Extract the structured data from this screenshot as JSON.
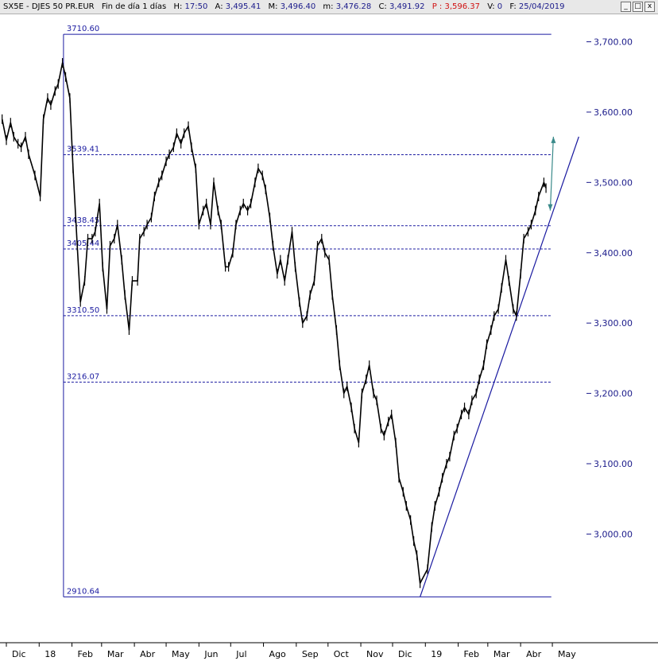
{
  "titlebar": {
    "symbol": "SX5E - DJES 50 PR.EUR",
    "period": "Fin de día 1 días",
    "h_label": "H:",
    "h_value": "17:50",
    "a_label": "A:",
    "a_value": "3,495.41",
    "m_label": "M:",
    "m_value": "3,496.40",
    "mi_label": "m:",
    "mi_value": "3,476.28",
    "c_label": "C:",
    "c_value": "3,491.92",
    "p_label": "P :",
    "p_value": "3,596.37",
    "v_label": "V:",
    "v_value": "0",
    "f_label": "F:",
    "f_value": "25/04/2019",
    "btn_min": "_",
    "btn_max": "□",
    "btn_close": "x"
  },
  "colors": {
    "price": "#000000",
    "lines": "#1a1aa0",
    "axis_text": "#1a1a8a",
    "arrow": "#3a8a8a"
  },
  "chart_data": {
    "type": "line",
    "ylim": [
      2850,
      3730
    ],
    "y_ticks": [
      3000,
      3100,
      3200,
      3300,
      3400,
      3500,
      3600,
      3700
    ],
    "y_tick_labels": [
      "3,000.00",
      "3,100.00",
      "3,200.00",
      "3,300.00",
      "3,400.00",
      "3,500.00",
      "3,600.00",
      "3,700.00"
    ],
    "x_tick_labels": [
      "Dic",
      "18",
      "Feb",
      "Mar",
      "Abr",
      "May",
      "Jun",
      "Jul",
      "Ago",
      "Sep",
      "Oct",
      "Nov",
      "Dic",
      "19",
      "Feb",
      "Mar",
      "Abr",
      "May"
    ],
    "x_ticks": [
      "2017-12-01",
      "2018-01-01",
      "2018-02-01",
      "2018-03-01",
      "2018-04-01",
      "2018-05-01",
      "2018-06-01",
      "2018-07-01",
      "2018-08-01",
      "2018-09-01",
      "2018-10-01",
      "2018-11-01",
      "2018-12-01",
      "2019-01-01",
      "2019-02-01",
      "2019-03-01",
      "2019-04-01",
      "2019-05-01"
    ],
    "xlim": [
      "2017-12-01",
      "2019-05-31"
    ],
    "series": [
      {
        "values": [
          [
            "2017-11-27",
            3590
          ],
          [
            "2017-12-01",
            3560
          ],
          [
            "2017-12-05",
            3585
          ],
          [
            "2017-12-08",
            3565
          ],
          [
            "2017-12-12",
            3555
          ],
          [
            "2017-12-15",
            3550
          ],
          [
            "2017-12-19",
            3565
          ],
          [
            "2017-12-22",
            3540
          ],
          [
            "2017-12-28",
            3510
          ],
          [
            "2018-01-02",
            3480
          ],
          [
            "2018-01-05",
            3590
          ],
          [
            "2018-01-09",
            3620
          ],
          [
            "2018-01-12",
            3610
          ],
          [
            "2018-01-16",
            3630
          ],
          [
            "2018-01-19",
            3640
          ],
          [
            "2018-01-23",
            3670
          ],
          [
            "2018-01-26",
            3650
          ],
          [
            "2018-01-30",
            3620
          ],
          [
            "2018-02-02",
            3520
          ],
          [
            "2018-02-06",
            3410
          ],
          [
            "2018-02-09",
            3330
          ],
          [
            "2018-02-13",
            3360
          ],
          [
            "2018-02-16",
            3420
          ],
          [
            "2018-02-20",
            3420
          ],
          [
            "2018-02-23",
            3430
          ],
          [
            "2018-02-27",
            3470
          ],
          [
            "2018-03-02",
            3380
          ],
          [
            "2018-03-06",
            3320
          ],
          [
            "2018-03-09",
            3410
          ],
          [
            "2018-03-13",
            3420
          ],
          [
            "2018-03-16",
            3440
          ],
          [
            "2018-03-20",
            3390
          ],
          [
            "2018-03-23",
            3340
          ],
          [
            "2018-03-27",
            3290
          ],
          [
            "2018-03-30",
            3360
          ],
          [
            "2018-04-04",
            3360
          ],
          [
            "2018-04-06",
            3420
          ],
          [
            "2018-04-10",
            3430
          ],
          [
            "2018-04-13",
            3440
          ],
          [
            "2018-04-17",
            3450
          ],
          [
            "2018-04-20",
            3480
          ],
          [
            "2018-04-24",
            3500
          ],
          [
            "2018-04-27",
            3510
          ],
          [
            "2018-05-01",
            3530
          ],
          [
            "2018-05-04",
            3540
          ],
          [
            "2018-05-08",
            3550
          ],
          [
            "2018-05-11",
            3570
          ],
          [
            "2018-05-15",
            3555
          ],
          [
            "2018-05-18",
            3570
          ],
          [
            "2018-05-22",
            3580
          ],
          [
            "2018-05-25",
            3550
          ],
          [
            "2018-05-29",
            3520
          ],
          [
            "2018-06-01",
            3440
          ],
          [
            "2018-06-05",
            3460
          ],
          [
            "2018-06-08",
            3470
          ],
          [
            "2018-06-12",
            3440
          ],
          [
            "2018-06-15",
            3500
          ],
          [
            "2018-06-19",
            3460
          ],
          [
            "2018-06-22",
            3440
          ],
          [
            "2018-06-26",
            3380
          ],
          [
            "2018-06-29",
            3380
          ],
          [
            "2018-07-03",
            3400
          ],
          [
            "2018-07-06",
            3440
          ],
          [
            "2018-07-10",
            3460
          ],
          [
            "2018-07-13",
            3470
          ],
          [
            "2018-07-17",
            3460
          ],
          [
            "2018-07-20",
            3470
          ],
          [
            "2018-07-24",
            3500
          ],
          [
            "2018-07-27",
            3520
          ],
          [
            "2018-07-31",
            3510
          ],
          [
            "2018-08-03",
            3490
          ],
          [
            "2018-08-07",
            3450
          ],
          [
            "2018-08-10",
            3410
          ],
          [
            "2018-08-14",
            3370
          ],
          [
            "2018-08-17",
            3390
          ],
          [
            "2018-08-21",
            3360
          ],
          [
            "2018-08-24",
            3390
          ],
          [
            "2018-08-28",
            3430
          ],
          [
            "2018-08-31",
            3380
          ],
          [
            "2018-09-04",
            3330
          ],
          [
            "2018-09-07",
            3300
          ],
          [
            "2018-09-11",
            3310
          ],
          [
            "2018-09-14",
            3340
          ],
          [
            "2018-09-18",
            3360
          ],
          [
            "2018-09-21",
            3410
          ],
          [
            "2018-09-25",
            3420
          ],
          [
            "2018-09-28",
            3400
          ],
          [
            "2018-10-02",
            3390
          ],
          [
            "2018-10-05",
            3340
          ],
          [
            "2018-10-09",
            3290
          ],
          [
            "2018-10-12",
            3240
          ],
          [
            "2018-10-16",
            3200
          ],
          [
            "2018-10-19",
            3210
          ],
          [
            "2018-10-23",
            3180
          ],
          [
            "2018-10-26",
            3150
          ],
          [
            "2018-10-30",
            3130
          ],
          [
            "2018-11-02",
            3200
          ],
          [
            "2018-11-06",
            3220
          ],
          [
            "2018-11-09",
            3240
          ],
          [
            "2018-11-13",
            3200
          ],
          [
            "2018-11-16",
            3190
          ],
          [
            "2018-11-20",
            3150
          ],
          [
            "2018-11-23",
            3140
          ],
          [
            "2018-11-27",
            3160
          ],
          [
            "2018-11-30",
            3170
          ],
          [
            "2018-12-04",
            3130
          ],
          [
            "2018-12-07",
            3080
          ],
          [
            "2018-12-11",
            3060
          ],
          [
            "2018-12-14",
            3040
          ],
          [
            "2018-12-18",
            3020
          ],
          [
            "2018-12-21",
            2990
          ],
          [
            "2018-12-24",
            2970
          ],
          [
            "2018-12-27",
            2930
          ],
          [
            "2019-01-03",
            2950
          ],
          [
            "2019-01-07",
            3010
          ],
          [
            "2019-01-10",
            3040
          ],
          [
            "2019-01-14",
            3060
          ],
          [
            "2019-01-17",
            3080
          ],
          [
            "2019-01-21",
            3100
          ],
          [
            "2019-01-24",
            3110
          ],
          [
            "2019-01-28",
            3140
          ],
          [
            "2019-01-31",
            3150
          ],
          [
            "2019-02-04",
            3170
          ],
          [
            "2019-02-07",
            3180
          ],
          [
            "2019-02-11",
            3170
          ],
          [
            "2019-02-14",
            3190
          ],
          [
            "2019-02-18",
            3200
          ],
          [
            "2019-02-21",
            3220
          ],
          [
            "2019-02-25",
            3240
          ],
          [
            "2019-02-28",
            3270
          ],
          [
            "2019-03-04",
            3290
          ],
          [
            "2019-03-07",
            3310
          ],
          [
            "2019-03-11",
            3320
          ],
          [
            "2019-03-14",
            3350
          ],
          [
            "2019-03-18",
            3390
          ],
          [
            "2019-03-21",
            3360
          ],
          [
            "2019-03-25",
            3320
          ],
          [
            "2019-03-28",
            3310
          ],
          [
            "2019-04-01",
            3370
          ],
          [
            "2019-04-04",
            3420
          ],
          [
            "2019-04-08",
            3430
          ],
          [
            "2019-04-11",
            3440
          ],
          [
            "2019-04-15",
            3460
          ],
          [
            "2019-04-18",
            3480
          ],
          [
            "2019-04-23",
            3500
          ],
          [
            "2019-04-25",
            3491.92
          ]
        ]
      }
    ],
    "fib_levels": [
      {
        "label": "3710.60",
        "value": 3710.6,
        "style": "solid"
      },
      {
        "label": "3539.41",
        "value": 3539.41,
        "style": "dashed"
      },
      {
        "label": "3438.45",
        "value": 3438.45,
        "style": "dashed"
      },
      {
        "label": "3405.44",
        "value": 3405.44,
        "style": "dashed"
      },
      {
        "label": "3310.50",
        "value": 3310.5,
        "style": "dashed"
      },
      {
        "label": "3216.07",
        "value": 3216.07,
        "style": "dashed"
      },
      {
        "label": "2910.64",
        "value": 2910.64,
        "style": "solid"
      }
    ],
    "fib_range": [
      "2018-01-24",
      "2019-04-30"
    ],
    "trendline": [
      [
        "2018-12-27",
        2910.64
      ],
      [
        "2019-05-26",
        3565
      ]
    ],
    "arrow": [
      [
        "2019-04-29",
        3460
      ],
      [
        "2019-05-02",
        3565
      ]
    ],
    "grid": false,
    "legend": "none"
  }
}
